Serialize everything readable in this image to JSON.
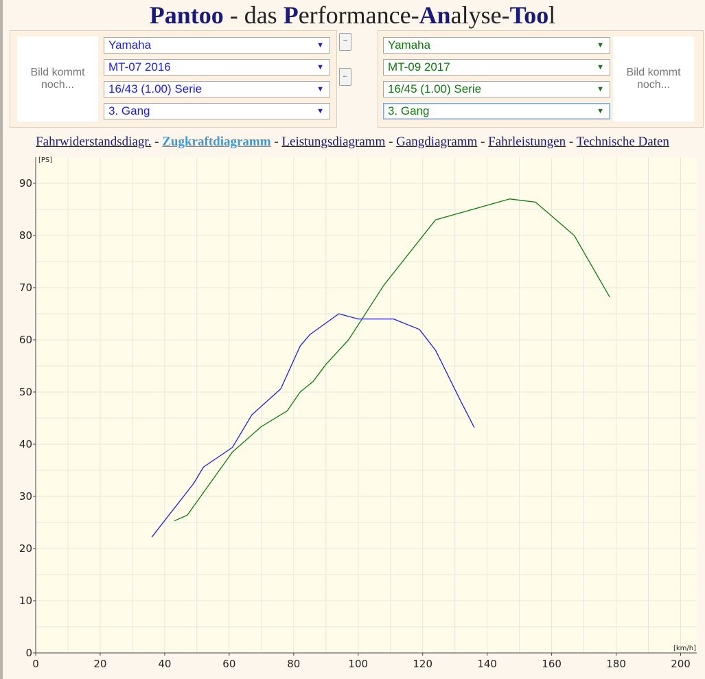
{
  "header": {
    "title_parts": [
      {
        "text": "Pantoo",
        "bold": true
      },
      {
        "text": " - das ",
        "bold": false
      },
      {
        "text": "P",
        "bold": true
      },
      {
        "text": "erformance-",
        "bold": false
      },
      {
        "text": "An",
        "bold": true
      },
      {
        "text": "alyse-",
        "bold": false
      },
      {
        "text": "Too",
        "bold": true
      },
      {
        "text": "l",
        "bold": false
      }
    ]
  },
  "left": {
    "image_placeholder": "Bild kommt noch...",
    "manufacturer": "Yamaha",
    "model": "MT-07 2016",
    "gearing": "16/43 (1.00) Serie",
    "gear": "3. Gang",
    "color": "#1c1ce6"
  },
  "right": {
    "image_placeholder": "Bild kommt noch...",
    "manufacturer": "Yamaha",
    "model": "MT-09 2017",
    "gearing": "16/45 (1.00) Serie",
    "gear": "3. Gang",
    "color": "#0e7a0e"
  },
  "buttons": {
    "remove_label": "–",
    "swap_label": "←"
  },
  "arrow_glyph": "▼",
  "nav": {
    "separator": " - ",
    "tabs": [
      {
        "label": "Fahrwiderstandsdiagr.",
        "active": false
      },
      {
        "label": "Zugkraftdiagramm",
        "active": true
      },
      {
        "label": "Leistungsdiagramm",
        "active": false
      },
      {
        "label": "Gangdiagramm",
        "active": false
      },
      {
        "label": "Fahrleistungen",
        "active": false
      },
      {
        "label": "Technische Daten",
        "active": false
      }
    ]
  },
  "chart_data": {
    "type": "line",
    "xlabel": "[km/h]",
    "ylabel": "[PS]",
    "xlim": [
      0,
      205
    ],
    "ylim": [
      0,
      95
    ],
    "xticks": [
      0,
      20,
      40,
      60,
      80,
      100,
      120,
      140,
      160,
      180,
      200
    ],
    "yticks": [
      0,
      10,
      20,
      30,
      40,
      50,
      60,
      70,
      80,
      90
    ],
    "grid": true,
    "series": [
      {
        "color": "#1c1ce6",
        "points": [
          [
            36,
            22.2
          ],
          [
            49,
            32.5
          ],
          [
            52,
            35.6
          ],
          [
            61,
            39.4
          ],
          [
            67,
            45.6
          ],
          [
            76,
            50.6
          ],
          [
            82,
            58.8
          ],
          [
            85,
            61
          ],
          [
            94,
            65
          ],
          [
            100,
            64
          ],
          [
            111,
            64
          ],
          [
            119,
            62
          ],
          [
            124,
            58
          ],
          [
            132,
            48
          ],
          [
            136,
            43.2
          ]
        ]
      },
      {
        "color": "#0e7a0e",
        "points": [
          [
            43,
            25.3
          ],
          [
            47,
            26.4
          ],
          [
            61,
            38.5
          ],
          [
            70,
            43.4
          ],
          [
            78,
            46.4
          ],
          [
            82,
            50
          ],
          [
            86,
            52
          ],
          [
            90,
            55.3
          ],
          [
            97,
            60
          ],
          [
            108,
            70.5
          ],
          [
            124,
            83
          ],
          [
            147,
            87
          ],
          [
            155,
            86.4
          ],
          [
            167,
            80
          ],
          [
            178,
            68.2
          ]
        ]
      }
    ]
  }
}
